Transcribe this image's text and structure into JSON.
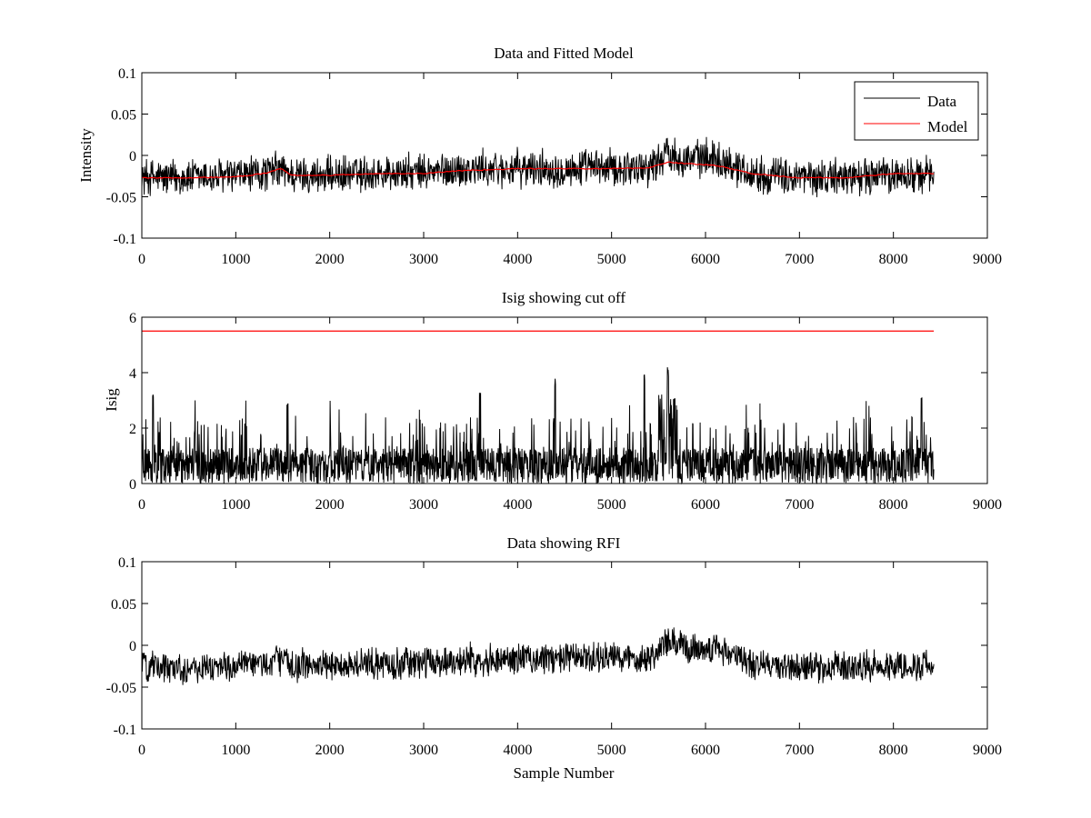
{
  "chart_data": [
    {
      "type": "line",
      "title": "Data and Fitted Model",
      "xlabel": "",
      "ylabel": "Intensity",
      "xlim": [
        0,
        9000
      ],
      "ylim": [
        -0.1,
        0.1
      ],
      "x_ticks": [
        "0",
        "1000",
        "2000",
        "3000",
        "4000",
        "5000",
        "6000",
        "7000",
        "8000",
        "9000"
      ],
      "y_ticks": [
        "-0.1",
        "-0.05",
        "0",
        "0.05",
        "0.1"
      ],
      "legend": {
        "position": "top-right",
        "entries": [
          "Data",
          "Model"
        ]
      },
      "grid": false,
      "series": [
        {
          "name": "Data",
          "color": "#000000",
          "x_range": [
            0,
            8430
          ],
          "baseline": {
            "x": [
              0,
              500,
              1000,
              1300,
              1480,
              1600,
              2000,
              2500,
              3000,
              3300,
              3500,
              4000,
              4500,
              5000,
              5400,
              5600,
              5800,
              6100,
              6500,
              7000,
              7500,
              8000,
              8430
            ],
            "y": [
              -0.026,
              -0.027,
              -0.025,
              -0.022,
              -0.016,
              -0.024,
              -0.024,
              -0.022,
              -0.021,
              -0.018,
              -0.017,
              -0.016,
              -0.016,
              -0.015,
              -0.014,
              0.003,
              -0.004,
              -0.002,
              -0.022,
              -0.027,
              -0.026,
              -0.024,
              -0.024
            ]
          },
          "noise_half_range": 0.022,
          "observed_range": [
            -0.062,
            0.032
          ]
        },
        {
          "name": "Model",
          "color": "#ff0000",
          "x": [
            0,
            500,
            1000,
            1300,
            1480,
            1600,
            2000,
            2500,
            3000,
            3300,
            3500,
            4000,
            4500,
            5000,
            5400,
            5600,
            5800,
            6100,
            6500,
            7000,
            7500,
            8000,
            8430
          ],
          "y": [
            -0.027,
            -0.027,
            -0.026,
            -0.022,
            -0.016,
            -0.024,
            -0.024,
            -0.022,
            -0.022,
            -0.019,
            -0.018,
            -0.016,
            -0.016,
            -0.016,
            -0.015,
            -0.008,
            -0.01,
            -0.012,
            -0.022,
            -0.027,
            -0.027,
            -0.022,
            -0.022
          ]
        }
      ]
    },
    {
      "type": "line",
      "title": "Isig showing cut off",
      "xlabel": "",
      "ylabel": "Isig",
      "xlim": [
        0,
        9000
      ],
      "ylim": [
        0,
        6
      ],
      "x_ticks": [
        "0",
        "1000",
        "2000",
        "3000",
        "4000",
        "5000",
        "6000",
        "7000",
        "8000",
        "9000"
      ],
      "y_ticks": [
        "0",
        "2",
        "4",
        "6"
      ],
      "grid": false,
      "series": [
        {
          "color": "#000000",
          "x_range": [
            0,
            8430
          ],
          "dense_band": [
            0,
            1.3
          ],
          "spike_max": 4.2,
          "spike_peaks": [
            {
              "x": 120,
              "y": 3.3
            },
            {
              "x": 1550,
              "y": 3.0
            },
            {
              "x": 3600,
              "y": 3.4
            },
            {
              "x": 4400,
              "y": 3.9
            },
            {
              "x": 5350,
              "y": 4.0
            },
            {
              "x": 5600,
              "y": 4.2
            },
            {
              "x": 8300,
              "y": 3.2
            }
          ]
        },
        {
          "color": "#ff0000",
          "x": [
            0,
            8430
          ],
          "y": [
            5.5,
            5.5
          ]
        }
      ]
    },
    {
      "type": "line",
      "title": "Data showing RFI",
      "xlabel": "Sample Number",
      "ylabel": "",
      "xlim": [
        0,
        9000
      ],
      "ylim": [
        -0.1,
        0.1
      ],
      "x_ticks": [
        "0",
        "1000",
        "2000",
        "3000",
        "4000",
        "5000",
        "6000",
        "7000",
        "8000",
        "9000"
      ],
      "y_ticks": [
        "-0.1",
        "-0.05",
        "0",
        "0.05",
        "0.1"
      ],
      "grid": false,
      "series": [
        {
          "color": "#000000",
          "x_range": [
            0,
            8430
          ],
          "baseline": {
            "x": [
              0,
              500,
              1000,
              1300,
              1480,
              1600,
              2000,
              2500,
              3000,
              3300,
              3500,
              4000,
              4500,
              5000,
              5400,
              5600,
              5800,
              6100,
              6500,
              7000,
              7500,
              8000,
              8430
            ],
            "y": [
              -0.026,
              -0.027,
              -0.025,
              -0.022,
              -0.016,
              -0.024,
              -0.024,
              -0.022,
              -0.021,
              -0.018,
              -0.017,
              -0.016,
              -0.016,
              -0.015,
              -0.014,
              0.003,
              -0.004,
              -0.002,
              -0.022,
              -0.027,
              -0.026,
              -0.024,
              -0.024
            ]
          },
          "noise_half_range": 0.018,
          "observed_range": [
            -0.062,
            0.032
          ]
        }
      ]
    }
  ]
}
